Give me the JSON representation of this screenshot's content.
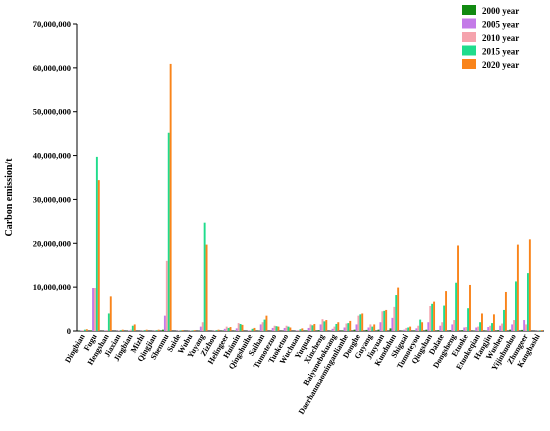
{
  "chart_data": {
    "type": "bar",
    "ylabel": "Carbon emission/t",
    "ylim": [
      0,
      70000000
    ],
    "yticks": [
      0,
      10000000,
      20000000,
      30000000,
      40000000,
      50000000,
      60000000,
      70000000
    ],
    "ytick_labels": [
      "0",
      "10,000,000",
      "20,000,000",
      "30,000,000",
      "40,000,000",
      "50,000,000",
      "60,000,000",
      "70,000,000"
    ],
    "legend_position": "top-right",
    "categories": [
      "Dingbian",
      "Fugu",
      "Hengshan",
      "Jiaxian",
      "Jingbian",
      "Mizhi",
      "Qingjian",
      "Shenmu",
      "Suide",
      "Wubu",
      "Yuyang",
      "Zizhou",
      "Helingeer",
      "Huimin",
      "Qingshuihe",
      "Saihan",
      "Tumotezuo",
      "Tuoketuo",
      "Wuchuan",
      "Yuquan",
      "Xincheng",
      "Baiyunebokuang",
      "Daerhanmaominganlianhe",
      "Donghe",
      "Guyang",
      "Jiuyuan",
      "Kundulun",
      "Shiguai",
      "Tumoteyou",
      "Qingshan",
      "Dalate",
      "Dongsheng",
      "Etuoke",
      "Etuokeqian",
      "Hangjin",
      "Wushen",
      "Yijinhuoluo",
      "Zhungeer",
      "Kangbashi"
    ],
    "series": [
      {
        "name": "2000 year",
        "color": "#118a11",
        "values": [
          50000,
          150000,
          30000,
          20000,
          40000,
          20000,
          20000,
          300000,
          20000,
          20000,
          50000,
          20000,
          80000,
          80000,
          20000,
          80000,
          50000,
          50000,
          30000,
          150000,
          200000,
          100000,
          150000,
          300000,
          250000,
          300000,
          600000,
          100000,
          150000,
          300000,
          200000,
          200000,
          200000,
          100000,
          100000,
          200000,
          300000,
          250000,
          20000
        ]
      },
      {
        "name": "2005 year",
        "color": "#c47ae8",
        "values": [
          100000,
          9800000,
          100000,
          50000,
          100000,
          50000,
          50000,
          3500000,
          50000,
          50000,
          1000000,
          50000,
          500000,
          600000,
          100000,
          1500000,
          700000,
          700000,
          100000,
          700000,
          1500000,
          500000,
          800000,
          1500000,
          800000,
          2000000,
          3000000,
          300000,
          600000,
          2000000,
          1200000,
          1500000,
          800000,
          800000,
          900000,
          1200000,
          1500000,
          2500000,
          50000
        ]
      },
      {
        "name": "2010 year",
        "color": "#f5a3ad",
        "values": [
          150000,
          9800000,
          200000,
          100000,
          300000,
          80000,
          80000,
          16000000,
          100000,
          100000,
          2000000,
          100000,
          1000000,
          1800000,
          200000,
          2000000,
          1200000,
          1200000,
          200000,
          1500000,
          2700000,
          1000000,
          1700000,
          3500000,
          1500000,
          4500000,
          5500000,
          700000,
          1200000,
          5700000,
          2000000,
          2500000,
          900000,
          1000000,
          1200000,
          1700000,
          2500000,
          1500000,
          80000
        ]
      },
      {
        "name": "2015 year",
        "color": "#1fdc8c",
        "values": [
          300000,
          39700000,
          4000000,
          200000,
          1200000,
          200000,
          200000,
          45200000,
          150000,
          150000,
          24700000,
          200000,
          700000,
          1600000,
          500000,
          2600000,
          1100000,
          1000000,
          400000,
          1300000,
          2200000,
          1600000,
          1800000,
          3800000,
          1000000,
          4600000,
          8200000,
          800000,
          2600000,
          6200000,
          5800000,
          11000000,
          5200000,
          2000000,
          1800000,
          4800000,
          11300000,
          13200000,
          150000
        ]
      },
      {
        "name": "2020 year",
        "color": "#f9841b",
        "values": [
          400000,
          34400000,
          7900000,
          300000,
          1500000,
          300000,
          300000,
          60900000,
          200000,
          200000,
          19700000,
          300000,
          900000,
          1400000,
          700000,
          3500000,
          1000000,
          800000,
          600000,
          1600000,
          2500000,
          2000000,
          2300000,
          4000000,
          1500000,
          4800000,
          9900000,
          1000000,
          2000000,
          6700000,
          9100000,
          19500000,
          10500000,
          4000000,
          3800000,
          8900000,
          19700000,
          20900000,
          200000
        ]
      }
    ]
  }
}
